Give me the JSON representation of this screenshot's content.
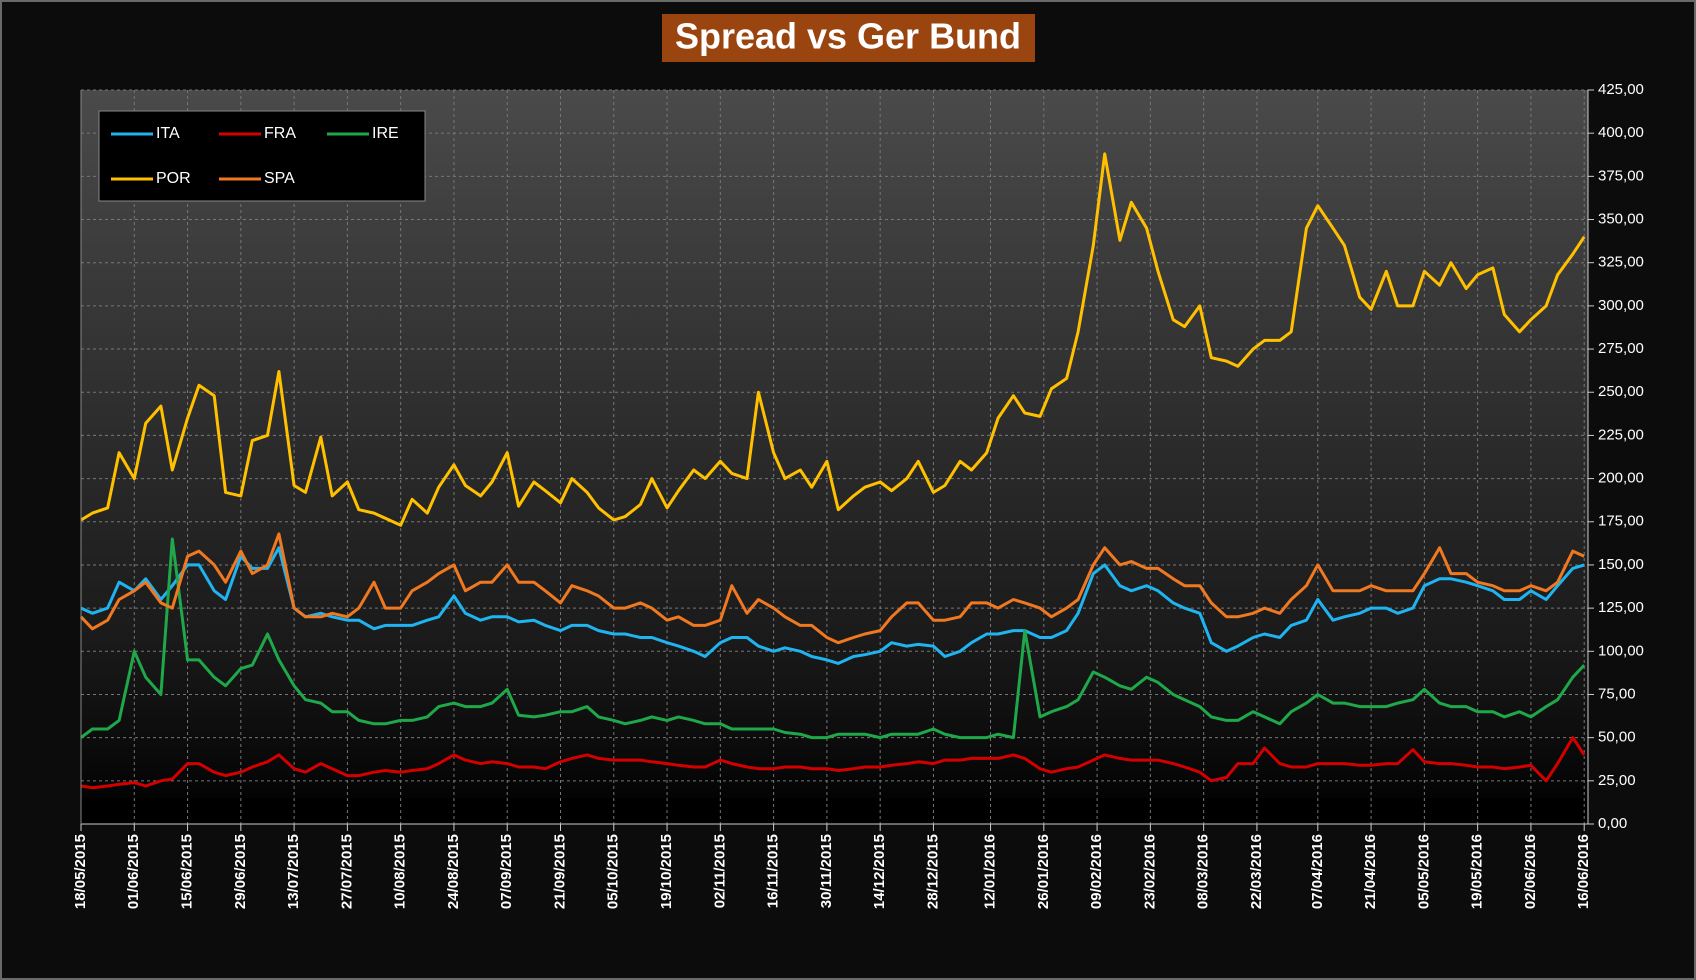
{
  "chart_data": {
    "type": "line",
    "title": "Spread vs Ger Bund",
    "legend": "upper left",
    "grid": true,
    "x": [
      "18/05/2015",
      "21/05/2015",
      "25/05/2015",
      "28/05/2015",
      "01/06/2015",
      "04/06/2015",
      "08/06/2015",
      "11/06/2015",
      "15/06/2015",
      "18/06/2015",
      "22/06/2015",
      "25/06/2015",
      "29/06/2015",
      "02/07/2015",
      "06/07/2015",
      "09/07/2015",
      "13/07/2015",
      "16/07/2015",
      "20/07/2015",
      "23/07/2015",
      "27/07/2015",
      "30/07/2015",
      "03/08/2015",
      "06/08/2015",
      "10/08/2015",
      "13/08/2015",
      "17/08/2015",
      "20/08/2015",
      "24/08/2015",
      "27/08/2015",
      "31/08/2015",
      "03/09/2015",
      "07/09/2015",
      "10/09/2015",
      "14/09/2015",
      "17/09/2015",
      "21/09/2015",
      "24/09/2015",
      "28/09/2015",
      "01/10/2015",
      "05/10/2015",
      "08/10/2015",
      "12/10/2015",
      "15/10/2015",
      "19/10/2015",
      "22/10/2015",
      "26/10/2015",
      "29/10/2015",
      "02/11/2015",
      "05/11/2015",
      "09/11/2015",
      "12/11/2015",
      "16/11/2015",
      "19/11/2015",
      "23/11/2015",
      "26/11/2015",
      "30/11/2015",
      "03/12/2015",
      "07/12/2015",
      "10/12/2015",
      "14/12/2015",
      "17/12/2015",
      "21/12/2015",
      "24/12/2015",
      "28/12/2015",
      "31/12/2015",
      "04/01/2016",
      "07/01/2016",
      "11/01/2016",
      "14/01/2016",
      "18/01/2016",
      "21/01/2016",
      "25/01/2016",
      "28/01/2016",
      "01/02/2016",
      "04/02/2016",
      "08/02/2016",
      "11/02/2016",
      "15/02/2016",
      "18/02/2016",
      "22/02/2016",
      "25/02/2016",
      "29/02/2016",
      "03/03/2016",
      "07/03/2016",
      "10/03/2016",
      "14/03/2016",
      "17/03/2016",
      "21/03/2016",
      "24/03/2016",
      "28/03/2016",
      "31/03/2016",
      "04/04/2016",
      "07/04/2016",
      "11/04/2016",
      "14/04/2016",
      "18/04/2016",
      "21/04/2016",
      "25/04/2016",
      "28/04/2016",
      "02/05/2016",
      "05/05/2016",
      "09/05/2016",
      "12/05/2016",
      "16/05/2016",
      "19/05/2016",
      "23/05/2016",
      "26/05/2016",
      "30/05/2016",
      "02/06/2016",
      "06/06/2016",
      "09/06/2016",
      "13/06/2016",
      "16/06/2016"
    ],
    "series": [
      {
        "name": "ITA",
        "color": "#1fb4f0",
        "values": [
          125,
          122,
          125,
          140,
          135,
          142,
          130,
          138,
          150,
          150,
          135,
          130,
          155,
          148,
          148,
          160,
          125,
          120,
          122,
          120,
          118,
          118,
          113,
          115,
          115,
          115,
          118,
          120,
          132,
          122,
          118,
          120,
          120,
          117,
          118,
          115,
          112,
          115,
          115,
          112,
          110,
          110,
          108,
          108,
          105,
          103,
          100,
          97,
          105,
          108,
          108,
          103,
          100,
          102,
          100,
          97,
          95,
          93,
          97,
          98,
          100,
          105,
          103,
          104,
          103,
          97,
          100,
          105,
          110,
          110,
          112,
          112,
          108,
          108,
          112,
          122,
          145,
          150,
          138,
          135,
          138,
          135,
          128,
          125,
          122,
          105,
          100,
          103,
          108,
          110,
          108,
          115,
          118,
          130,
          118,
          120,
          122,
          125,
          125,
          122,
          125,
          138,
          142,
          142,
          140,
          138,
          135,
          130,
          130,
          135,
          130,
          138,
          148,
          150
        ]
      },
      {
        "name": "FRA",
        "color": "#d40000",
        "values": [
          22,
          21,
          22,
          23,
          24,
          22,
          25,
          26,
          35,
          35,
          30,
          28,
          30,
          33,
          36,
          40,
          32,
          30,
          35,
          32,
          28,
          28,
          30,
          31,
          30,
          31,
          32,
          35,
          40,
          37,
          35,
          36,
          35,
          33,
          33,
          32,
          36,
          38,
          40,
          38,
          37,
          37,
          37,
          36,
          35,
          34,
          33,
          33,
          37,
          35,
          33,
          32,
          32,
          33,
          33,
          32,
          32,
          31,
          32,
          33,
          33,
          34,
          35,
          36,
          35,
          37,
          37,
          38,
          38,
          38,
          40,
          38,
          32,
          30,
          32,
          33,
          37,
          40,
          38,
          37,
          37,
          37,
          35,
          33,
          30,
          25,
          27,
          35,
          35,
          44,
          35,
          33,
          33,
          35,
          35,
          35,
          34,
          34,
          35,
          35,
          43,
          36,
          35,
          35,
          34,
          33,
          33,
          32,
          33,
          34,
          25,
          35,
          50,
          40
        ]
      },
      {
        "name": "IRE",
        "color": "#1fa84a",
        "values": [
          50,
          55,
          55,
          60,
          100,
          85,
          75,
          165,
          95,
          95,
          85,
          80,
          90,
          92,
          110,
          95,
          80,
          72,
          70,
          65,
          65,
          60,
          58,
          58,
          60,
          60,
          62,
          68,
          70,
          68,
          68,
          70,
          78,
          63,
          62,
          63,
          65,
          65,
          68,
          62,
          60,
          58,
          60,
          62,
          60,
          62,
          60,
          58,
          58,
          55,
          55,
          55,
          55,
          53,
          52,
          50,
          50,
          52,
          52,
          52,
          50,
          52,
          52,
          52,
          55,
          52,
          50,
          50,
          50,
          52,
          50,
          112,
          62,
          65,
          68,
          72,
          88,
          85,
          80,
          78,
          85,
          82,
          75,
          72,
          68,
          62,
          60,
          60,
          65,
          62,
          58,
          65,
          70,
          75,
          70,
          70,
          68,
          68,
          68,
          70,
          72,
          78,
          70,
          68,
          68,
          65,
          65,
          62,
          65,
          62,
          68,
          72,
          85,
          92
        ]
      },
      {
        "name": "POR",
        "color": "#ffc000",
        "values": [
          176,
          180,
          183,
          215,
          200,
          232,
          242,
          205,
          235,
          254,
          248,
          192,
          190,
          222,
          225,
          262,
          196,
          192,
          224,
          190,
          198,
          182,
          180,
          177,
          173,
          188,
          180,
          195,
          208,
          196,
          190,
          198,
          215,
          184,
          198,
          193,
          186,
          200,
          192,
          183,
          176,
          178,
          185,
          200,
          183,
          193,
          205,
          200,
          210,
          203,
          200,
          250,
          215,
          200,
          205,
          195,
          210,
          182,
          190,
          195,
          198,
          193,
          200,
          210,
          192,
          196,
          210,
          205,
          215,
          235,
          248,
          238,
          236,
          252,
          258,
          285,
          335,
          388,
          338,
          360,
          345,
          320,
          292,
          288,
          300,
          270,
          268,
          265,
          275,
          280,
          280,
          285,
          345,
          358,
          345,
          335,
          305,
          298,
          320,
          300,
          300,
          320,
          312,
          325,
          310,
          318,
          322,
          295,
          285,
          292,
          300,
          318,
          330,
          340
        ]
      },
      {
        "name": "SPA",
        "color": "#f07820",
        "values": [
          120,
          113,
          118,
          130,
          135,
          140,
          128,
          125,
          155,
          158,
          150,
          140,
          158,
          145,
          150,
          168,
          125,
          120,
          120,
          122,
          120,
          125,
          140,
          125,
          125,
          135,
          140,
          145,
          150,
          135,
          140,
          140,
          150,
          140,
          140,
          135,
          128,
          138,
          135,
          132,
          125,
          125,
          128,
          125,
          118,
          120,
          115,
          115,
          118,
          138,
          122,
          130,
          125,
          120,
          115,
          115,
          108,
          105,
          108,
          110,
          112,
          120,
          128,
          128,
          118,
          118,
          120,
          128,
          128,
          125,
          130,
          128,
          125,
          120,
          125,
          130,
          150,
          160,
          150,
          152,
          148,
          148,
          142,
          138,
          138,
          128,
          120,
          120,
          122,
          125,
          122,
          130,
          138,
          150,
          135,
          135,
          135,
          138,
          135,
          135,
          135,
          145,
          160,
          145,
          145,
          140,
          138,
          135,
          135,
          138,
          135,
          140,
          158,
          155
        ]
      }
    ],
    "xlim": [
      "18/05/2015",
      "17/06/2016"
    ],
    "xticks": [
      "18/05/2015",
      "01/06/2015",
      "15/06/2015",
      "29/06/2015",
      "13/07/2015",
      "27/07/2015",
      "10/08/2015",
      "24/08/2015",
      "07/09/2015",
      "21/09/2015",
      "05/10/2015",
      "19/10/2015",
      "02/11/2015",
      "16/11/2015",
      "30/11/2015",
      "14/12/2015",
      "28/12/2015",
      "12/01/2016",
      "26/01/2016",
      "09/02/2016",
      "23/02/2016",
      "08/03/2016",
      "22/03/2016",
      "07/04/2016",
      "21/04/2016",
      "05/05/2016",
      "19/05/2016",
      "02/06/2016",
      "16/06/2016"
    ],
    "ylim": [
      0,
      425
    ],
    "yticks": [
      {
        "value": 0,
        "label": "0,00"
      },
      {
        "value": 25,
        "label": "25,00"
      },
      {
        "value": 50,
        "label": "50,00"
      },
      {
        "value": 75,
        "label": "75,00"
      },
      {
        "value": 100,
        "label": "100,00"
      },
      {
        "value": 125,
        "label": "125,00"
      },
      {
        "value": 150,
        "label": "150,00"
      },
      {
        "value": 175,
        "label": "175,00"
      },
      {
        "value": 200,
        "label": "200,00"
      },
      {
        "value": 225,
        "label": "225,00"
      },
      {
        "value": 250,
        "label": "250,00"
      },
      {
        "value": 275,
        "label": "275,00"
      },
      {
        "value": 300,
        "label": "300,00"
      },
      {
        "value": 325,
        "label": "325,00"
      },
      {
        "value": 350,
        "label": "350,00"
      },
      {
        "value": 375,
        "label": "375,00"
      },
      {
        "value": 400,
        "label": "400,00"
      },
      {
        "value": 425,
        "label": "425,00"
      }
    ]
  }
}
